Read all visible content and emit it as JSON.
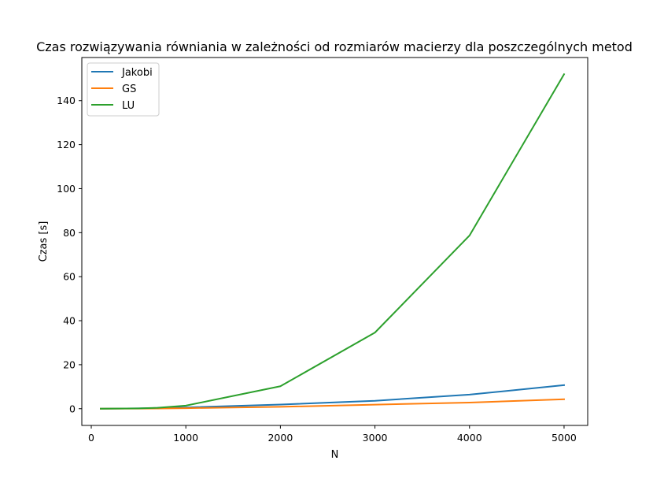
{
  "chart_data": {
    "type": "line",
    "title": "Czas rozwiązywania równiania w zależności od rozmiarów macierzy dla poszczególnych metod",
    "xlabel": "N",
    "ylabel": "Czas [s]",
    "x": [
      100,
      500,
      700,
      1000,
      2000,
      3000,
      4000,
      5000
    ],
    "xlim": [
      -100,
      5250
    ],
    "ylim": [
      -7.6,
      159.6
    ],
    "xticks": [
      0,
      1000,
      2000,
      3000,
      4000,
      5000
    ],
    "yticks": [
      0,
      20,
      40,
      60,
      80,
      100,
      120,
      140
    ],
    "grid": false,
    "legend_position": "top-left",
    "series": [
      {
        "name": "Jakobi",
        "color": "#1f77b4",
        "values": [
          0.02,
          0.15,
          0.3,
          0.55,
          1.9,
          3.6,
          6.4,
          10.7
        ]
      },
      {
        "name": "GS",
        "color": "#ff7f0e",
        "values": [
          0.01,
          0.06,
          0.12,
          0.25,
          0.85,
          1.85,
          2.8,
          4.3
        ]
      },
      {
        "name": "LU",
        "color": "#2ca02c",
        "values": [
          0.02,
          0.15,
          0.4,
          1.4,
          10.2,
          34.6,
          78.7,
          152.0
        ]
      }
    ]
  }
}
